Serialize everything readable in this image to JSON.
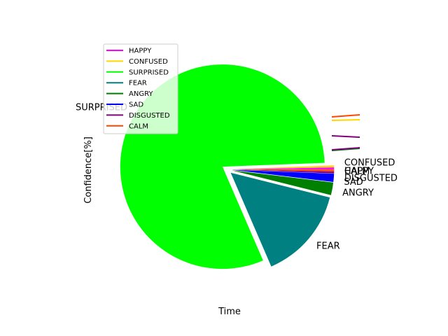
{
  "chart_data": {
    "type": "pie",
    "xlabel": "Time",
    "ylabel": "Confidence[%]",
    "legend_placement": "upper-left",
    "slices": [
      {
        "label": "HAPPY",
        "value": 0.3,
        "color": "#ff00ff"
      },
      {
        "label": "CONFUSED",
        "value": 0.3,
        "color": "#ffd700"
      },
      {
        "label": "SURPRISED",
        "value": 80.9,
        "color": "#00ff00"
      },
      {
        "label": "FEAR",
        "value": 14.6,
        "color": "#008080"
      },
      {
        "label": "ANGRY",
        "value": 2.0,
        "color": "#008000"
      },
      {
        "label": "SAD",
        "value": 1.3,
        "color": "#0000ff"
      },
      {
        "label": "DISGUSTED",
        "value": 0.3,
        "color": "#800080"
      },
      {
        "label": "CALM",
        "value": 0.3,
        "color": "#ff4500"
      }
    ],
    "legend": [
      {
        "label": "HAPPY",
        "color": "#ff00ff"
      },
      {
        "label": "CONFUSED",
        "color": "#ffd700"
      },
      {
        "label": "SURPRISED",
        "color": "#00ff00"
      },
      {
        "label": "FEAR",
        "color": "#008080"
      },
      {
        "label": "ANGRY",
        "color": "#008000"
      },
      {
        "label": "SAD",
        "color": "#0000ff"
      },
      {
        "label": "DISGUSTED",
        "color": "#800080"
      },
      {
        "label": "CALM",
        "color": "#ff4500"
      }
    ],
    "decorative_lines": [
      {
        "series": "CALM",
        "color": "#ff4500"
      },
      {
        "series": "CONFUSED",
        "color": "#ffd700"
      },
      {
        "series": "DISGUSTED",
        "color": "#800080"
      },
      {
        "series": "ANGRY",
        "color": "#008000"
      },
      {
        "series": "DISGUSTED",
        "color": "#800080"
      }
    ]
  }
}
